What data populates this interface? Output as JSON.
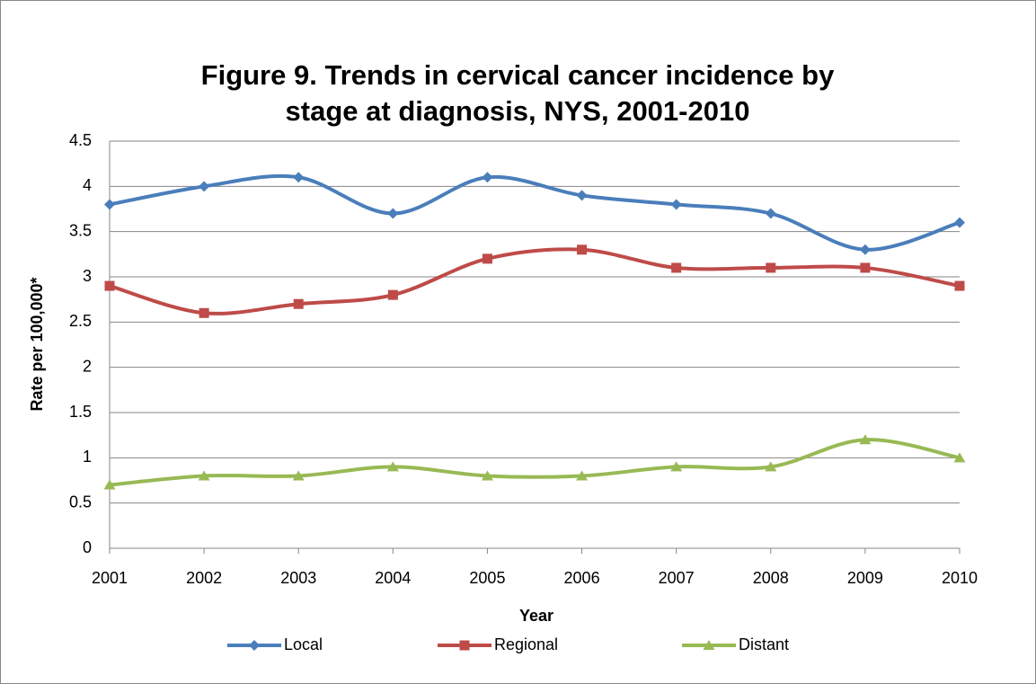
{
  "chart_data": {
    "type": "line",
    "title": "Figure 9. Trends in cervical cancer incidence by stage at diagnosis, NYS, 2001-2010",
    "x_label": "Year",
    "y_label": "Rate per 100,000*",
    "categories": [
      "2001",
      "2002",
      "2003",
      "2004",
      "2005",
      "2006",
      "2007",
      "2008",
      "2009",
      "2010"
    ],
    "series": [
      {
        "name": "Local",
        "color": "#4a7ebb",
        "marker": "diamond",
        "values": [
          3.8,
          4.0,
          4.1,
          3.7,
          4.1,
          3.9,
          3.8,
          3.7,
          3.3,
          3.6
        ]
      },
      {
        "name": "Regional",
        "color": "#be4b48",
        "marker": "square",
        "values": [
          2.9,
          2.6,
          2.7,
          2.8,
          3.2,
          3.3,
          3.1,
          3.1,
          3.1,
          2.9
        ]
      },
      {
        "name": "Distant",
        "color": "#98b954",
        "marker": "triangle",
        "values": [
          0.7,
          0.8,
          0.8,
          0.9,
          0.8,
          0.8,
          0.9,
          0.9,
          1.2,
          1.0
        ]
      }
    ],
    "ylim": [
      0,
      4.5
    ],
    "yticks": [
      0,
      0.5,
      1,
      1.5,
      2,
      2.5,
      3,
      3.5,
      4,
      4.5
    ],
    "grid": true,
    "smooth": true,
    "legend": "bottom"
  }
}
